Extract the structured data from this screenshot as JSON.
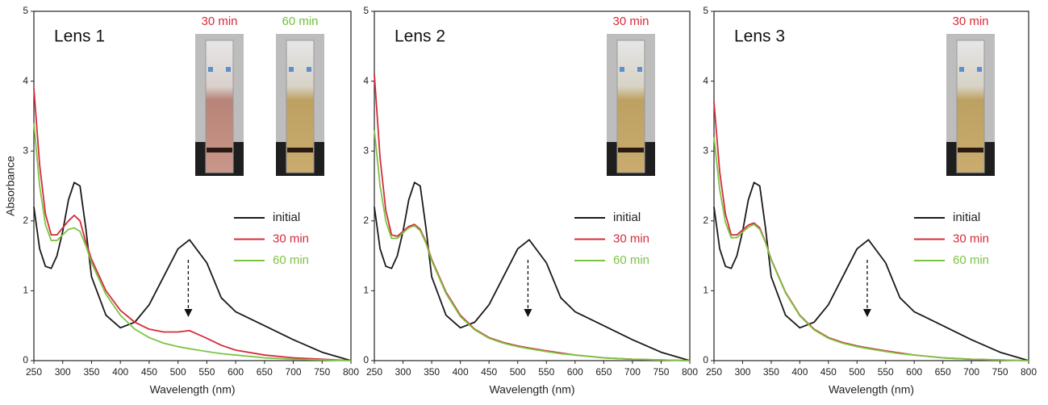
{
  "chart_data": [
    {
      "type": "line",
      "title": "Lens 1",
      "x_label": "Wavelength (nm)",
      "y_label": "Absorbance",
      "xlim": [
        250,
        800
      ],
      "ylim": [
        0,
        5
      ],
      "xticks": [
        250,
        300,
        350,
        400,
        450,
        500,
        550,
        600,
        650,
        700,
        750,
        800
      ],
      "yticks": [
        0,
        1,
        2,
        3,
        4,
        5
      ],
      "annotations": [
        {
          "text": "30 min",
          "color": "#d62a3a"
        },
        {
          "text": "60 min",
          "color": "#6fbf3a"
        }
      ],
      "x": [
        250,
        260,
        270,
        280,
        290,
        300,
        310,
        320,
        330,
        340,
        350,
        375,
        400,
        425,
        450,
        475,
        500,
        520,
        550,
        575,
        600,
        650,
        700,
        750,
        800
      ],
      "series": [
        {
          "name": "initial",
          "color": "#1a1a1a",
          "values": [
            2.2,
            1.6,
            1.35,
            1.32,
            1.5,
            1.85,
            2.3,
            2.55,
            2.5,
            1.9,
            1.2,
            0.65,
            0.47,
            0.55,
            0.8,
            1.2,
            1.6,
            1.73,
            1.4,
            0.9,
            0.7,
            0.5,
            0.3,
            0.12,
            0.0
          ]
        },
        {
          "name": "30 min",
          "color": "#d62a3a",
          "values": [
            3.9,
            2.8,
            2.1,
            1.8,
            1.8,
            1.9,
            2.0,
            2.08,
            2.0,
            1.7,
            1.45,
            1.0,
            0.72,
            0.55,
            0.45,
            0.41,
            0.41,
            0.43,
            0.32,
            0.22,
            0.15,
            0.08,
            0.04,
            0.02,
            0.0
          ]
        },
        {
          "name": "60 min",
          "color": "#7cc443",
          "values": [
            3.4,
            2.5,
            1.95,
            1.72,
            1.72,
            1.8,
            1.88,
            1.9,
            1.85,
            1.65,
            1.4,
            0.95,
            0.65,
            0.45,
            0.33,
            0.25,
            0.2,
            0.17,
            0.13,
            0.1,
            0.08,
            0.04,
            0.02,
            0.01,
            0.0
          ]
        }
      ]
    },
    {
      "type": "line",
      "title": "Lens 2",
      "x_label": "Wavelength (nm)",
      "xlim": [
        250,
        800
      ],
      "ylim": [
        0,
        5
      ],
      "xticks": [
        250,
        300,
        350,
        400,
        450,
        500,
        550,
        600,
        650,
        700,
        750,
        800
      ],
      "yticks": [
        0,
        1,
        2,
        3,
        4,
        5
      ],
      "annotations": [
        {
          "text": "30 min",
          "color": "#d62a3a"
        }
      ],
      "x": [
        250,
        260,
        270,
        280,
        290,
        300,
        310,
        320,
        330,
        340,
        350,
        375,
        400,
        425,
        450,
        475,
        500,
        520,
        550,
        575,
        600,
        650,
        700,
        750,
        800
      ],
      "series": [
        {
          "name": "initial",
          "color": "#1a1a1a",
          "values": [
            2.2,
            1.6,
            1.35,
            1.32,
            1.5,
            1.85,
            2.3,
            2.55,
            2.5,
            1.9,
            1.2,
            0.65,
            0.47,
            0.55,
            0.8,
            1.2,
            1.6,
            1.73,
            1.4,
            0.9,
            0.7,
            0.5,
            0.3,
            0.12,
            0.0
          ]
        },
        {
          "name": "30 min",
          "color": "#d62a3a",
          "values": [
            4.1,
            2.9,
            2.15,
            1.8,
            1.78,
            1.85,
            1.92,
            1.95,
            1.88,
            1.7,
            1.45,
            0.98,
            0.65,
            0.45,
            0.33,
            0.26,
            0.21,
            0.18,
            0.14,
            0.11,
            0.08,
            0.04,
            0.02,
            0.01,
            0.0
          ]
        },
        {
          "name": "60 min",
          "color": "#7cc443",
          "values": [
            3.3,
            2.5,
            2.0,
            1.75,
            1.75,
            1.83,
            1.9,
            1.93,
            1.86,
            1.68,
            1.43,
            0.96,
            0.63,
            0.44,
            0.32,
            0.25,
            0.2,
            0.17,
            0.13,
            0.1,
            0.08,
            0.04,
            0.02,
            0.01,
            0.0
          ]
        }
      ]
    },
    {
      "type": "line",
      "title": "Lens 3",
      "x_label": "Wavelength (nm)",
      "xlim": [
        250,
        800
      ],
      "ylim": [
        0,
        5
      ],
      "xticks": [
        250,
        300,
        350,
        400,
        450,
        500,
        550,
        600,
        650,
        700,
        750,
        800
      ],
      "yticks": [
        0,
        1,
        2,
        3,
        4,
        5
      ],
      "annotations": [
        {
          "text": "30 min",
          "color": "#d62a3a"
        }
      ],
      "x": [
        250,
        260,
        270,
        280,
        290,
        300,
        310,
        320,
        330,
        340,
        350,
        375,
        400,
        425,
        450,
        475,
        500,
        520,
        550,
        575,
        600,
        650,
        700,
        750,
        800
      ],
      "series": [
        {
          "name": "initial",
          "color": "#1a1a1a",
          "values": [
            2.2,
            1.6,
            1.35,
            1.32,
            1.5,
            1.85,
            2.3,
            2.55,
            2.5,
            1.9,
            1.2,
            0.65,
            0.47,
            0.55,
            0.8,
            1.2,
            1.6,
            1.73,
            1.4,
            0.9,
            0.7,
            0.5,
            0.3,
            0.12,
            0.0
          ]
        },
        {
          "name": "30 min",
          "color": "#d62a3a",
          "values": [
            3.7,
            2.7,
            2.1,
            1.8,
            1.8,
            1.87,
            1.94,
            1.97,
            1.9,
            1.7,
            1.45,
            0.98,
            0.65,
            0.45,
            0.33,
            0.26,
            0.21,
            0.18,
            0.14,
            0.11,
            0.08,
            0.04,
            0.02,
            0.01,
            0.0
          ]
        },
        {
          "name": "60 min",
          "color": "#7cc443",
          "values": [
            3.2,
            2.45,
            1.98,
            1.76,
            1.76,
            1.84,
            1.91,
            1.95,
            1.88,
            1.69,
            1.44,
            0.97,
            0.64,
            0.44,
            0.32,
            0.25,
            0.2,
            0.17,
            0.13,
            0.1,
            0.08,
            0.04,
            0.02,
            0.01,
            0.0
          ]
        }
      ]
    }
  ]
}
